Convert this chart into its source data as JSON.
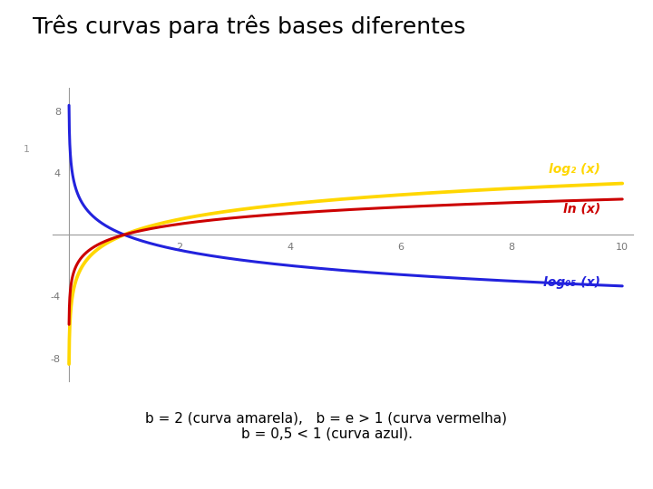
{
  "title": "Três curvas para três bases diferentes",
  "title_fontsize": 18,
  "background_color": "#ffffff",
  "xlim_plot": [
    -0.3,
    10.2
  ],
  "ylim_plot": [
    -9.5,
    9.5
  ],
  "xaxis_ticks": [
    2,
    4,
    6,
    8,
    10
  ],
  "yaxis_ticks": [
    -8,
    -4,
    4,
    8
  ],
  "yaxis_tick_labels": [
    "-8",
    "-4",
    "4",
    "8"
  ],
  "curve_b2_color": "#FFD700",
  "curve_e_color": "#CC0000",
  "curve_05_color": "#2222DD",
  "label_b2": "log₂ (x)",
  "label_e": "ln (x)",
  "label_05": "log₀₅ (x)",
  "label_b2_color": "#FFD700",
  "label_e_color": "#CC0000",
  "label_05_color": "#2222DD",
  "caption_part1": "b = 2 (curva amarela),   b = e > 1 (",
  "caption_bold1": "curva vermelha",
  "caption_part2": ")",
  "caption_part3": "b = 0,5 < 1 (",
  "caption_bold2": "curva azul",
  "caption_part4": ").",
  "caption_fontsize": 11,
  "linewidth": 2.2
}
